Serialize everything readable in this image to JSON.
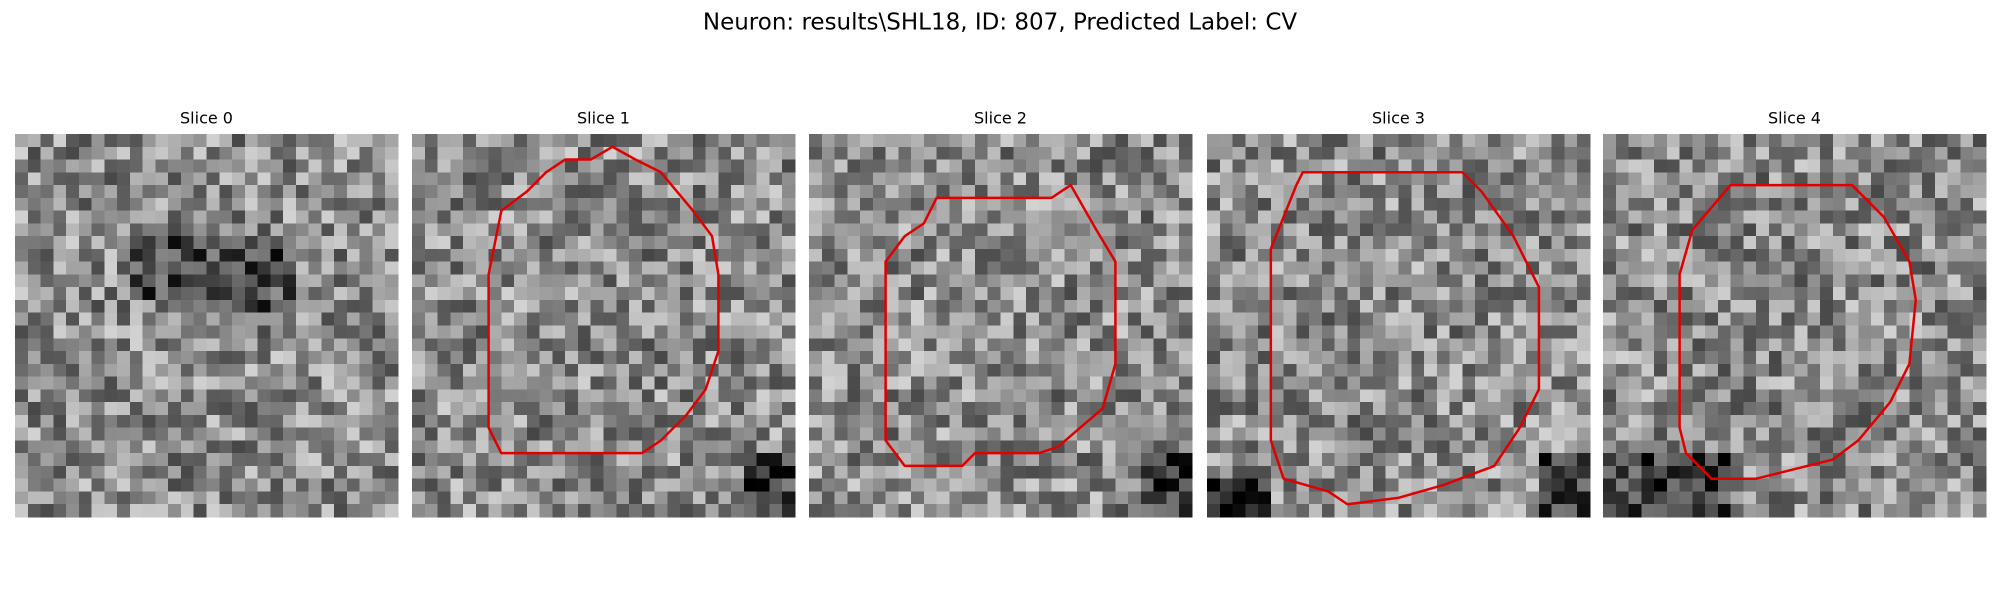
{
  "title": "Neuron: results\\SHL18, ID: 807, Predicted Label: CV",
  "panels": [
    {
      "title": "Slice 0"
    },
    {
      "title": "Slice 1"
    },
    {
      "title": "Slice 2"
    },
    {
      "title": "Slice 3"
    },
    {
      "title": "Slice 4"
    }
  ]
}
